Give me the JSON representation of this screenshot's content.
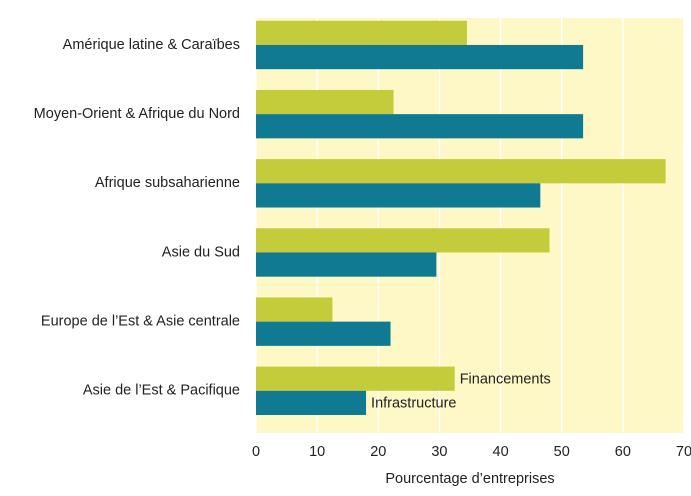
{
  "chart_data": {
    "type": "hbar",
    "xlabel": "Pourcentage d’entreprises",
    "categories": [
      "Amérique latine & Caraïbes",
      "Moyen-Orient & Afrique du Nord",
      "Afrique subsaharienne",
      "Asie du Sud",
      "Europe de l’Est & Asie centrale",
      "Asie de l’Est & Pacifique"
    ],
    "series": [
      {
        "name": "Financements",
        "color": "#c5cc3b",
        "values": [
          34.5,
          22.5,
          67,
          48,
          12.5,
          32.5
        ]
      },
      {
        "name": "Infrastructure",
        "color": "#0f7a92",
        "values": [
          53.5,
          53.5,
          46.5,
          29.5,
          22,
          18
        ]
      }
    ],
    "xlim": [
      0,
      70
    ],
    "xticks": [
      0,
      10,
      20,
      30,
      40,
      50,
      60,
      70
    ],
    "grid": true,
    "background": "#fdf8c6"
  }
}
